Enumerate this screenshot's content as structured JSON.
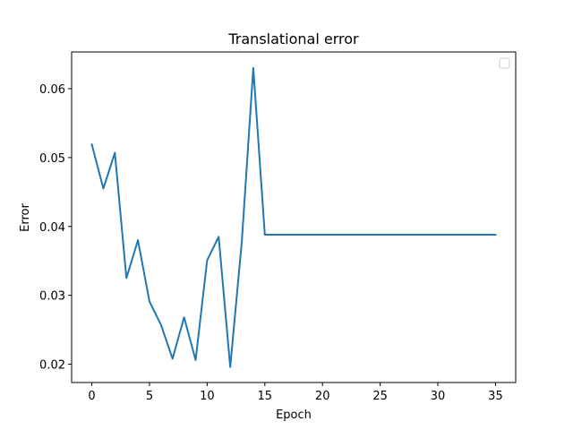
{
  "chart_data": {
    "type": "line",
    "title": "Translational error",
    "xlabel": "Epoch",
    "ylabel": "Error",
    "xlim": [
      -1.75,
      36.75
    ],
    "ylim": [
      0.01734,
      0.06533
    ],
    "x_ticks": [
      0,
      5,
      10,
      15,
      20,
      25,
      30,
      35
    ],
    "y_ticks": [
      0.02,
      0.03,
      0.04,
      0.05,
      0.06
    ],
    "grid": false,
    "legend": {
      "placement": "top-right",
      "entries": []
    },
    "series": [
      {
        "color": "#1f77b4",
        "x": [
          0,
          1,
          2,
          3,
          4,
          5,
          6,
          7,
          8,
          9,
          10,
          11,
          12,
          13,
          14,
          15,
          16,
          17,
          18,
          19,
          20,
          21,
          22,
          23,
          24,
          25,
          26,
          27,
          28,
          29,
          30,
          31,
          32,
          33,
          34,
          35
        ],
        "y": [
          0.0519,
          0.0455,
          0.0507,
          0.0325,
          0.038,
          0.0291,
          0.0257,
          0.0208,
          0.0268,
          0.0206,
          0.0351,
          0.0385,
          0.0196,
          0.0377,
          0.063,
          0.0388,
          0.0388,
          0.0388,
          0.0388,
          0.0388,
          0.0388,
          0.0388,
          0.0388,
          0.0388,
          0.0388,
          0.0388,
          0.0388,
          0.0388,
          0.0388,
          0.0388,
          0.0388,
          0.0388,
          0.0388,
          0.0388,
          0.0388,
          0.0388
        ]
      }
    ]
  }
}
